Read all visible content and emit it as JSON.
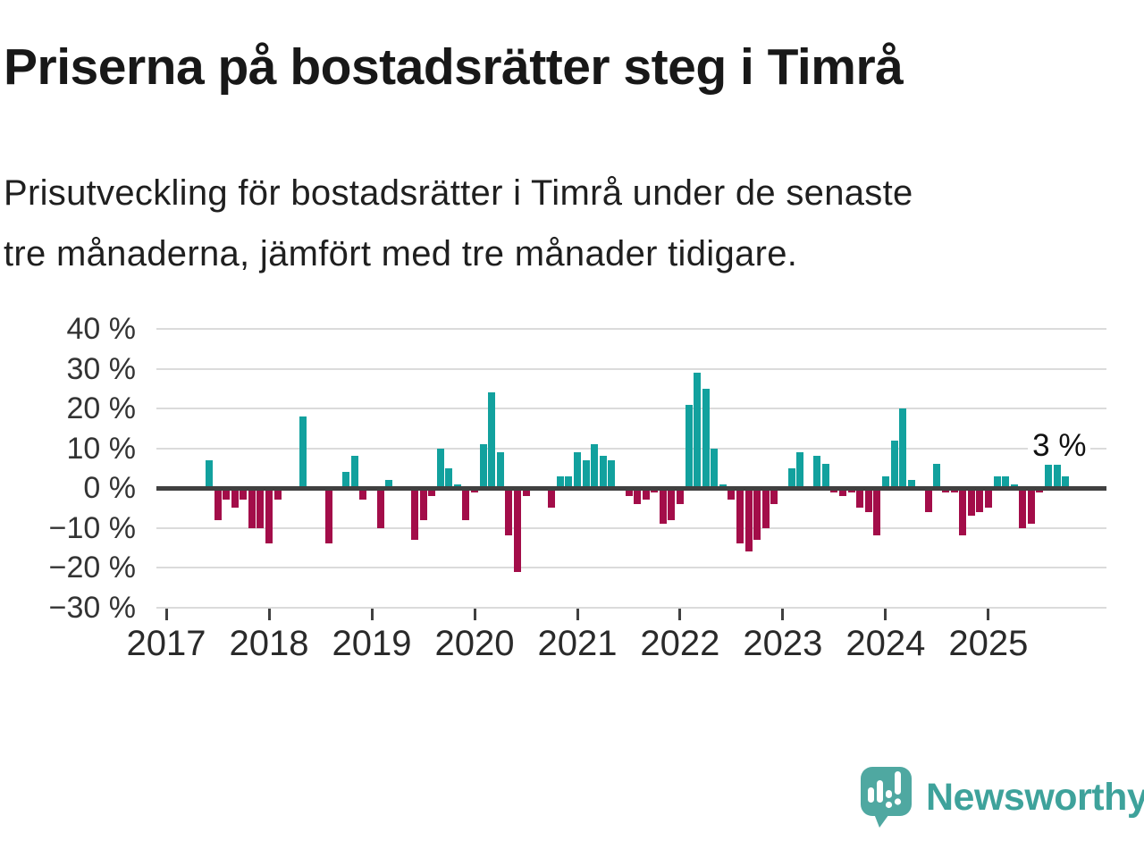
{
  "header": {
    "title": "Priserna på bostadsrätter steg i Timrå",
    "subtitle": "Prisutveckling för bostadsrätter i Timrå under de senaste\ntre månaderna, jämfört med tre månader tidigare."
  },
  "branding": {
    "name": "Newsworthy",
    "logo_icon": "speech-bubble-bar-chart-exclamation"
  },
  "chart_data": {
    "type": "bar",
    "title": "Priserna på bostadsrätter steg i Timrå",
    "subtitle": "Prisutveckling för bostadsrätter i Timrå under de senaste tre månaderna, jämfört med tre månader tidigare.",
    "unit": "%",
    "grid": true,
    "legend": "none",
    "ylim": [
      -33,
      42
    ],
    "yticks": [
      {
        "value": 40,
        "label": "40 %"
      },
      {
        "value": 30,
        "label": "30 %"
      },
      {
        "value": 20,
        "label": "20 %"
      },
      {
        "value": 10,
        "label": "10 %"
      },
      {
        "value": 0,
        "label": "0 %"
      },
      {
        "value": -10,
        "label": "−10 %"
      },
      {
        "value": -20,
        "label": "−20 %"
      },
      {
        "value": -30,
        "label": "−30 %"
      }
    ],
    "xticks": [
      {
        "value": 2017,
        "label": "2017"
      },
      {
        "value": 2018,
        "label": "2018"
      },
      {
        "value": 2019,
        "label": "2019"
      },
      {
        "value": 2020,
        "label": "2020"
      },
      {
        "value": 2021,
        "label": "2021"
      },
      {
        "value": 2022,
        "label": "2022"
      },
      {
        "value": 2023,
        "label": "2023"
      },
      {
        "value": 2024,
        "label": "2024"
      },
      {
        "value": 2025,
        "label": "2025"
      }
    ],
    "colors": {
      "positive": "#12a19e",
      "negative": "#a30d49",
      "gridline": "#dbdbdb",
      "axis": "#404040"
    },
    "annotation": {
      "text": "3 %",
      "month": "2025-10"
    },
    "series": [
      {
        "month": "2017-06",
        "value": 7
      },
      {
        "month": "2017-07",
        "value": -8
      },
      {
        "month": "2017-08",
        "value": -3
      },
      {
        "month": "2017-09",
        "value": -5
      },
      {
        "month": "2017-10",
        "value": -3
      },
      {
        "month": "2017-11",
        "value": -10
      },
      {
        "month": "2017-12",
        "value": -10
      },
      {
        "month": "2018-01",
        "value": -14
      },
      {
        "month": "2018-02",
        "value": -3
      },
      {
        "month": "2018-05",
        "value": 18
      },
      {
        "month": "2018-08",
        "value": -14
      },
      {
        "month": "2018-10",
        "value": 4
      },
      {
        "month": "2018-11",
        "value": 8
      },
      {
        "month": "2018-12",
        "value": -3
      },
      {
        "month": "2019-02",
        "value": -10
      },
      {
        "month": "2019-03",
        "value": 2
      },
      {
        "month": "2019-06",
        "value": -13
      },
      {
        "month": "2019-07",
        "value": -8
      },
      {
        "month": "2019-08",
        "value": -2
      },
      {
        "month": "2019-09",
        "value": 10
      },
      {
        "month": "2019-10",
        "value": 5
      },
      {
        "month": "2019-11",
        "value": 1
      },
      {
        "month": "2019-12",
        "value": -8
      },
      {
        "month": "2020-01",
        "value": -1
      },
      {
        "month": "2020-02",
        "value": 11
      },
      {
        "month": "2020-03",
        "value": 24
      },
      {
        "month": "2020-04",
        "value": 9
      },
      {
        "month": "2020-05",
        "value": -12
      },
      {
        "month": "2020-06",
        "value": -21
      },
      {
        "month": "2020-07",
        "value": -2
      },
      {
        "month": "2020-10",
        "value": -5
      },
      {
        "month": "2020-11",
        "value": 3
      },
      {
        "month": "2020-12",
        "value": 3
      },
      {
        "month": "2021-01",
        "value": 9
      },
      {
        "month": "2021-02",
        "value": 7
      },
      {
        "month": "2021-03",
        "value": 11
      },
      {
        "month": "2021-04",
        "value": 8
      },
      {
        "month": "2021-05",
        "value": 7
      },
      {
        "month": "2021-07",
        "value": -2
      },
      {
        "month": "2021-08",
        "value": -4
      },
      {
        "month": "2021-09",
        "value": -3
      },
      {
        "month": "2021-10",
        "value": -1
      },
      {
        "month": "2021-11",
        "value": -9
      },
      {
        "month": "2021-12",
        "value": -8
      },
      {
        "month": "2022-01",
        "value": -4
      },
      {
        "month": "2022-02",
        "value": 21
      },
      {
        "month": "2022-03",
        "value": 29
      },
      {
        "month": "2022-04",
        "value": 25
      },
      {
        "month": "2022-05",
        "value": 10
      },
      {
        "month": "2022-06",
        "value": 1
      },
      {
        "month": "2022-07",
        "value": -3
      },
      {
        "month": "2022-08",
        "value": -14
      },
      {
        "month": "2022-09",
        "value": -16
      },
      {
        "month": "2022-10",
        "value": -13
      },
      {
        "month": "2022-11",
        "value": -10
      },
      {
        "month": "2022-12",
        "value": -4
      },
      {
        "month": "2023-02",
        "value": 5
      },
      {
        "month": "2023-03",
        "value": 9
      },
      {
        "month": "2023-05",
        "value": 8
      },
      {
        "month": "2023-06",
        "value": 6
      },
      {
        "month": "2023-07",
        "value": -1
      },
      {
        "month": "2023-08",
        "value": -2
      },
      {
        "month": "2023-09",
        "value": -1
      },
      {
        "month": "2023-10",
        "value": -5
      },
      {
        "month": "2023-11",
        "value": -6
      },
      {
        "month": "2023-12",
        "value": -12
      },
      {
        "month": "2024-01",
        "value": 3
      },
      {
        "month": "2024-02",
        "value": 12
      },
      {
        "month": "2024-03",
        "value": 20
      },
      {
        "month": "2024-04",
        "value": 2
      },
      {
        "month": "2024-06",
        "value": -6
      },
      {
        "month": "2024-07",
        "value": 6
      },
      {
        "month": "2024-08",
        "value": -1
      },
      {
        "month": "2024-09",
        "value": -1
      },
      {
        "month": "2024-10",
        "value": -12
      },
      {
        "month": "2024-11",
        "value": -7
      },
      {
        "month": "2024-12",
        "value": -6
      },
      {
        "month": "2025-01",
        "value": -5
      },
      {
        "month": "2025-02",
        "value": 3
      },
      {
        "month": "2025-03",
        "value": 3
      },
      {
        "month": "2025-04",
        "value": 1
      },
      {
        "month": "2025-05",
        "value": -10
      },
      {
        "month": "2025-06",
        "value": -9
      },
      {
        "month": "2025-07",
        "value": -1
      },
      {
        "month": "2025-08",
        "value": 6
      },
      {
        "month": "2025-09",
        "value": 7
      },
      {
        "month": "2025-10",
        "value": 3
      }
    ]
  }
}
